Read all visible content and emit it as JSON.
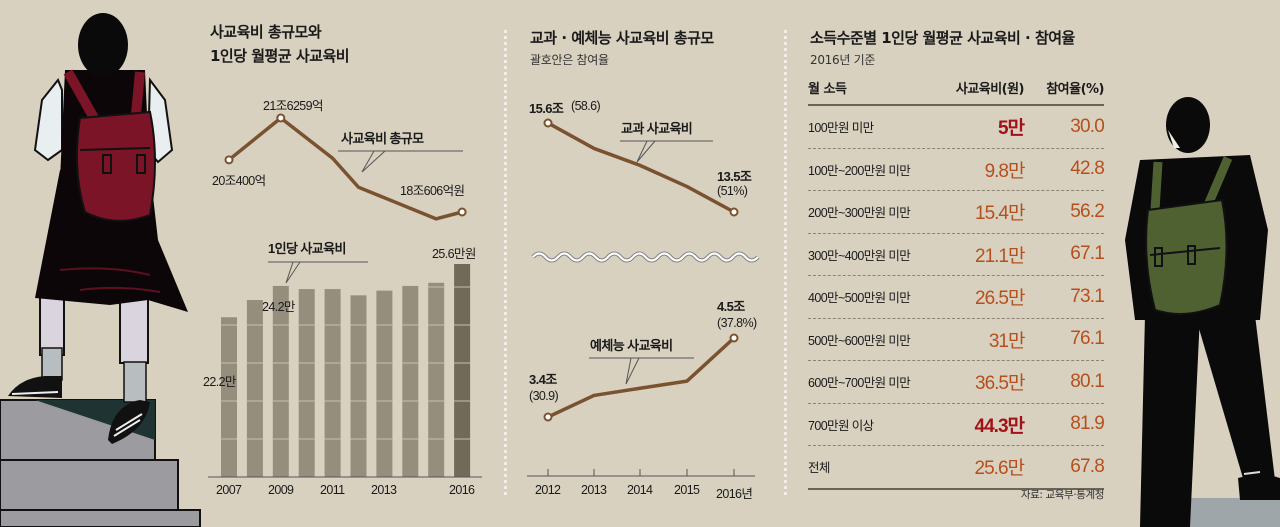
{
  "colors": {
    "background": "#d9d1c0",
    "line": "#7a5230",
    "bar": "#968e7c",
    "bar_highlight": "#726a58",
    "table_value": "#b5501e",
    "table_highlight": "#a31118"
  },
  "illustrations": {
    "left": "student-girl-red-backpack-on-stairs",
    "right": "student-boy-green-backpack"
  },
  "chart_data": [
    {
      "id": "total-and-per-capita",
      "title_line1": "사교육비 총규모와",
      "title_line2": "1인당 월평균 사교육비",
      "line": {
        "type": "line",
        "name": "사교육비 총규모",
        "unit": "조원",
        "x": [
          "2007",
          "2009",
          "2011",
          "2012",
          "2015",
          "2016"
        ],
        "values": [
          20.04,
          21.6259,
          20.1,
          19.0,
          17.8,
          18.0606
        ],
        "point_labels": [
          {
            "x": "2007",
            "text": "20조400억"
          },
          {
            "x": "2009",
            "text": "21조6259억"
          },
          {
            "x": "2016",
            "text": "18조606억원"
          }
        ],
        "markers": [
          "2007",
          "2009",
          "2016"
        ],
        "yrange": [
          17,
          23
        ]
      },
      "bars": {
        "type": "bar",
        "name": "1인당 사교육비",
        "unit": "만원",
        "categories": [
          "2007",
          "2008",
          "2009",
          "2010",
          "2011",
          "2012",
          "2013",
          "2014",
          "2015",
          "2016"
        ],
        "values": [
          22.2,
          23.3,
          24.2,
          24.0,
          24.0,
          23.6,
          23.9,
          24.2,
          24.4,
          25.6
        ],
        "highlight": "2016",
        "tick_labels": [
          "2007",
          "2009",
          "2011",
          "2013",
          "2016"
        ],
        "data_labels": [
          {
            "x": "2007",
            "text": "22.2만"
          },
          {
            "x": "2009",
            "text": "24.2만"
          },
          {
            "x": "2016",
            "text": "25.6만원"
          }
        ],
        "ylim": [
          12,
          27
        ]
      }
    },
    {
      "id": "subject-vs-arts",
      "title": "교과 · 예체능 사교육비 총규모",
      "subtitle": "괄호안은 참여율",
      "type": "line",
      "x": [
        "2012",
        "2013",
        "2014",
        "2015",
        "2016"
      ],
      "x_tick_labels": [
        "2012",
        "2013",
        "2014",
        "2015",
        "2016년"
      ],
      "series": [
        {
          "name": "교과 사교육비",
          "unit": "조원",
          "values": [
            15.6,
            15.0,
            14.6,
            14.1,
            13.5
          ],
          "start_label": {
            "value": "15.6조",
            "rate": "(58.6)"
          },
          "end_label": {
            "value": "13.5조",
            "rate": "(51%)"
          },
          "yrange": [
            12.5,
            16.5
          ]
        },
        {
          "name": "예체능 사교육비",
          "unit": "조원",
          "values": [
            3.4,
            3.7,
            3.8,
            3.9,
            4.5
          ],
          "start_label": {
            "value": "3.4조",
            "rate": "(30.9)"
          },
          "end_label": {
            "value": "4.5조",
            "rate": "(37.8%)"
          },
          "yrange": [
            2.5,
            5.0
          ]
        }
      ],
      "axis_break": true
    },
    {
      "id": "income-table",
      "type": "table",
      "title": "소득수준별 1인당 월평균 사교육비 · 참여율",
      "subtitle": "2016년 기준",
      "columns": [
        "월 소득",
        "사교육비(원)",
        "참여율(%)"
      ],
      "rows": [
        {
          "income": "100만원 미만",
          "cost": "5만",
          "rate": "30.0",
          "highlight": true
        },
        {
          "income": "100만~200만원 미만",
          "cost": "9.8만",
          "rate": "42.8",
          "highlight": false
        },
        {
          "income": "200만~300만원 미만",
          "cost": "15.4만",
          "rate": "56.2",
          "highlight": false
        },
        {
          "income": "300만~400만원 미만",
          "cost": "21.1만",
          "rate": "67.1",
          "highlight": false
        },
        {
          "income": "400만~500만원 미만",
          "cost": "26.5만",
          "rate": "73.1",
          "highlight": false
        },
        {
          "income": "500만~600만원 미만",
          "cost": "31만",
          "rate": "76.1",
          "highlight": false
        },
        {
          "income": "600만~700만원 미만",
          "cost": "36.5만",
          "rate": "80.1",
          "highlight": false
        },
        {
          "income": "700만원 이상",
          "cost": "44.3만",
          "rate": "81.9",
          "highlight": true
        },
        {
          "income": "전체",
          "cost": "25.6만",
          "rate": "67.8",
          "highlight": false
        }
      ],
      "source": "자료: 교육부·통계청"
    }
  ]
}
